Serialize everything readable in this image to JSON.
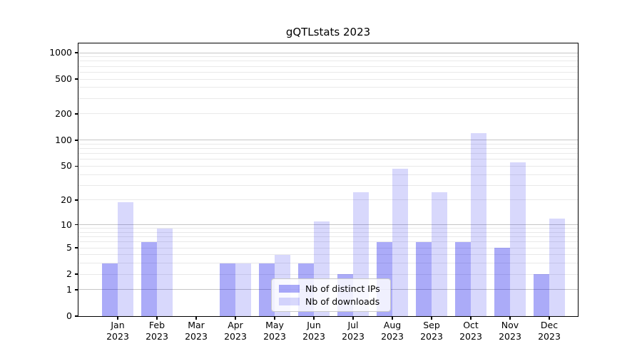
{
  "chart_data": {
    "type": "bar",
    "title": "gQTLstats 2023",
    "categories": [
      "Jan 2023",
      "Feb 2023",
      "Mar 2023",
      "Apr 2023",
      "May 2023",
      "Jun 2023",
      "Jul 2023",
      "Aug 2023",
      "Sep 2023",
      "Oct 2023",
      "Nov 2023",
      "Dec 2023"
    ],
    "series": [
      {
        "name": "Nb of distinct IPs",
        "values": [
          3,
          6,
          0,
          3,
          3,
          3,
          2,
          6,
          6,
          6,
          5,
          2
        ]
      },
      {
        "name": "Nb of downloads",
        "values": [
          19,
          9,
          0,
          3,
          4,
          11,
          25,
          47,
          25,
          120,
          55,
          12
        ]
      }
    ],
    "xlabel": "",
    "ylabel": "",
    "yscale": "log1p",
    "yticks": [
      0,
      1,
      2,
      5,
      10,
      20,
      50,
      100,
      200,
      500,
      1000
    ],
    "ylim": [
      0,
      1276
    ],
    "grid": {
      "major": [
        1,
        10,
        100,
        1000
      ],
      "minor_rule": "2-9 per decade"
    },
    "legend_position": "inside lower-center"
  },
  "colors": {
    "bar_distinct_ips": "rgba(15,15,235,0.35)",
    "bar_downloads": "rgba(15,15,235,0.16)",
    "grid_major": "#c6c6c6",
    "grid_minor": "#e9e9e9",
    "spine": "#000000",
    "background": "#ffffff"
  }
}
